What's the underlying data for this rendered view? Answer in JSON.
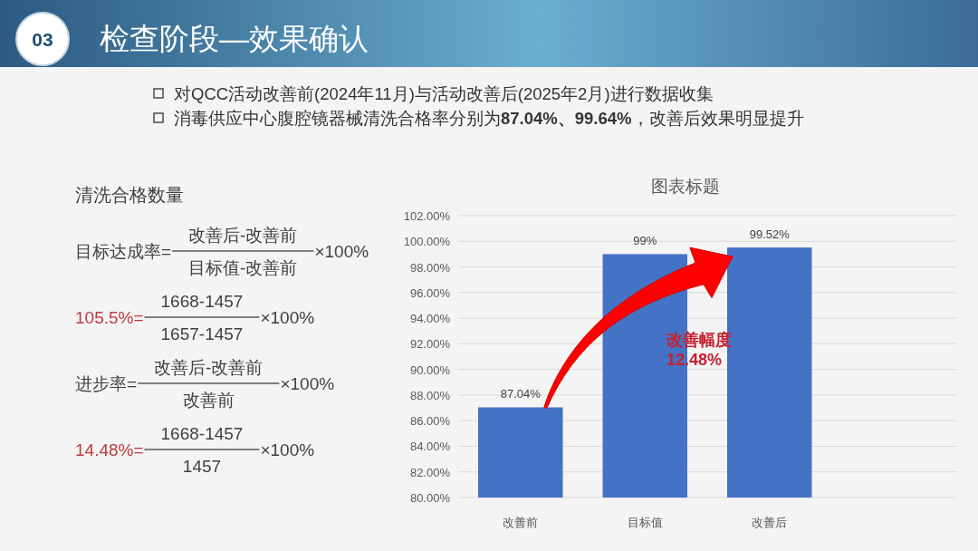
{
  "chart_data": [
    {
      "type": "other",
      "title": "检查阶段—效果确认",
      "annotations": [
        "03",
        "对QCC活动改善前(2024年11月)与活动改善后(2025年2月)进行数据收集",
        "消毒供应中心腹腔镜器械清洗合格率分别为**87.04%、99.64%**，改善后效果明显提升",
        "清洗合格数量",
        "目标达成率=",
        "改善后-改善前",
        "目标值-改善前",
        "×100%",
        "105.5%=",
        "1668-1457",
        "1657-1457",
        "×100%",
        "进步率=",
        "改善后-改善前",
        "改善前",
        "×100%",
        "14.48%=",
        "1668-1457",
        "1457",
        "×100%"
      ]
    },
    {
      "type": "bar",
      "title": "图表标题",
      "categories": [
        "改善前",
        "目标值",
        "改善后",
        null
      ],
      "values": [
        87.04,
        99,
        99.52,
        null
      ],
      "color": "#4472c4",
      "value_labels": [
        "87.04%",
        "99%",
        "99.52%",
        null
      ],
      "ylim": [
        80,
        102
      ],
      "yticks": [
        {
          "value": 80,
          "label": "80.00%"
        },
        {
          "value": 82,
          "label": "82.00%"
        },
        {
          "value": 84,
          "label": "84.00%"
        },
        {
          "value": 86,
          "label": "86.00%"
        },
        {
          "value": 88,
          "label": "88.00%"
        },
        {
          "value": 90,
          "label": "90.00%"
        },
        {
          "value": 92,
          "label": "92.00%"
        },
        {
          "value": 94,
          "label": "94.00%"
        },
        {
          "value": 96,
          "label": "96.00%"
        },
        {
          "value": 98,
          "label": "98.00%"
        },
        {
          "value": 100,
          "label": "100.00%"
        },
        {
          "value": 102,
          "label": "102.00%"
        }
      ],
      "grid": "y",
      "annotations": [
        "改善幅度",
        "12.48%"
      ]
    }
  ]
}
